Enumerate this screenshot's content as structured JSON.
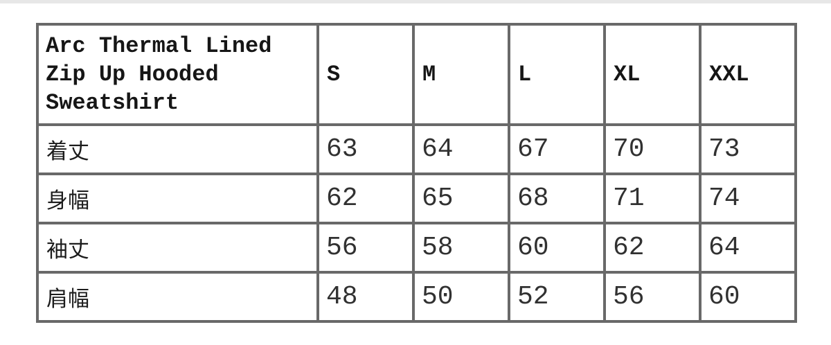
{
  "table": {
    "product_name": "Arc Thermal Lined Zip Up Hooded Sweatshirt",
    "size_columns": [
      "S",
      "M",
      "L",
      "XL",
      "XXL"
    ],
    "rows": [
      {
        "label": "着丈",
        "values": [
          "63",
          "64",
          "67",
          "70",
          "73"
        ]
      },
      {
        "label": "身幅",
        "values": [
          "62",
          "65",
          "68",
          "71",
          "74"
        ]
      },
      {
        "label": "袖丈",
        "values": [
          "56",
          "58",
          "60",
          "62",
          "64"
        ]
      },
      {
        "label": "肩幅",
        "values": [
          "48",
          "50",
          "52",
          "56",
          "60"
        ]
      }
    ]
  },
  "colors": {
    "border": "#696969",
    "header_text": "#161616",
    "value_text": "#313131",
    "top_strip": "#e7e7e7",
    "background": "#ffffff"
  }
}
